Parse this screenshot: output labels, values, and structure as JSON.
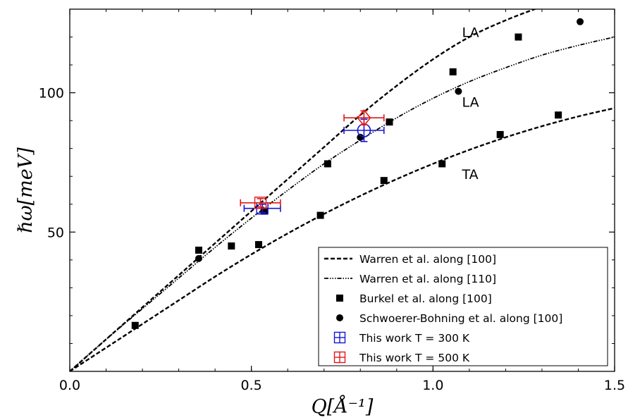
{
  "chart_data": {
    "type": "scatter",
    "xlabel": "Q[Å⁻¹]",
    "ylabel": "ℏω[meV]",
    "xlim": [
      0.0,
      1.5
    ],
    "ylim": [
      0,
      130
    ],
    "x_ticks": [
      {
        "value": 0.0,
        "label": "0.0"
      },
      {
        "value": 0.5,
        "label": "0.5"
      },
      {
        "value": 1.0,
        "label": "1.0"
      },
      {
        "value": 1.5,
        "label": "1.5"
      }
    ],
    "y_ticks": [
      {
        "value": 50,
        "label": "50"
      },
      {
        "value": 100,
        "label": "100"
      }
    ],
    "grid": false,
    "legend_position": "bottom-right",
    "series": [
      {
        "name": "Warren et al. along [100]",
        "kind": "dashed-line",
        "color": "#000000",
        "curves": [
          {
            "x": [
              0,
              0.1,
              0.2,
              0.3,
              0.4,
              0.5,
              0.6,
              0.7,
              0.8,
              0.9,
              1.0,
              1.1,
              1.2,
              1.3
            ],
            "y": [
              0,
              11.5,
              23,
              34.5,
              46,
              57.5,
              69,
              80.5,
              92,
              102.5,
              112,
              120,
              126,
              131
            ]
          },
          {
            "x": [
              0,
              0.1,
              0.2,
              0.3,
              0.4,
              0.5,
              0.6,
              0.7,
              0.8,
              0.9,
              1.0,
              1.1,
              1.2,
              1.3,
              1.4,
              1.5
            ],
            "y": [
              0,
              8.5,
              17,
              25.5,
              34,
              42,
              49.5,
              56.5,
              63,
              69,
              74.5,
              79.5,
              84,
              88,
              91.5,
              94.5
            ]
          }
        ]
      },
      {
        "name": "Warren et al. along [110]",
        "kind": "dash-dot-line",
        "color": "#000000",
        "x": [
          0,
          0.1,
          0.2,
          0.3,
          0.4,
          0.5,
          0.6,
          0.7,
          0.8,
          0.9,
          1.0,
          1.1,
          1.2,
          1.3,
          1.4,
          1.5
        ],
        "y": [
          0,
          11.5,
          22.5,
          33.5,
          44.5,
          55,
          65,
          74.5,
          83,
          91,
          98,
          104,
          109,
          113.5,
          117,
          120
        ]
      },
      {
        "name": "Burkel et al. along [100]",
        "kind": "square-marker",
        "color": "#000000",
        "x": [
          0.18,
          0.355,
          0.445,
          0.52,
          0.535,
          0.69,
          0.71,
          0.865,
          0.88,
          1.025,
          1.055,
          1.185,
          1.235,
          1.345
        ],
        "y": [
          16.5,
          43.5,
          45,
          45.5,
          57.5,
          56,
          74.5,
          68.5,
          89.5,
          74.5,
          107.5,
          85,
          120,
          92
        ]
      },
      {
        "name": "Schwoerer-Bohning et al. along [100]",
        "kind": "circle-marker",
        "color": "#000000",
        "x": [
          0.355,
          0.8,
          1.07,
          1.405
        ],
        "y": [
          40.5,
          84,
          100.5,
          125.5
        ]
      },
      {
        "name": "This work T = 300 K",
        "kind": "errorbar-open-marker",
        "color": "#1515d2",
        "points": [
          {
            "x": 0.53,
            "y": 58.5,
            "xerr": 0.05,
            "yerr": 1.5
          },
          {
            "x": 0.81,
            "y": 86.5,
            "xerr": 0.055,
            "yerr": 4
          }
        ]
      },
      {
        "name": "This work T = 500 K",
        "kind": "errorbar-open-marker",
        "color": "#e01818",
        "points": [
          {
            "x": 0.525,
            "y": 60.5,
            "xerr": 0.055,
            "yerr": 1.5
          },
          {
            "x": 0.81,
            "y": 91,
            "xerr": 0.055,
            "yerr": 2.5
          }
        ]
      }
    ],
    "annotations": [
      {
        "text": "LA",
        "x": 1.08,
        "y": 120
      },
      {
        "text": "LA",
        "x": 1.08,
        "y": 95
      },
      {
        "text": "TA",
        "x": 1.08,
        "y": 69
      }
    ]
  }
}
